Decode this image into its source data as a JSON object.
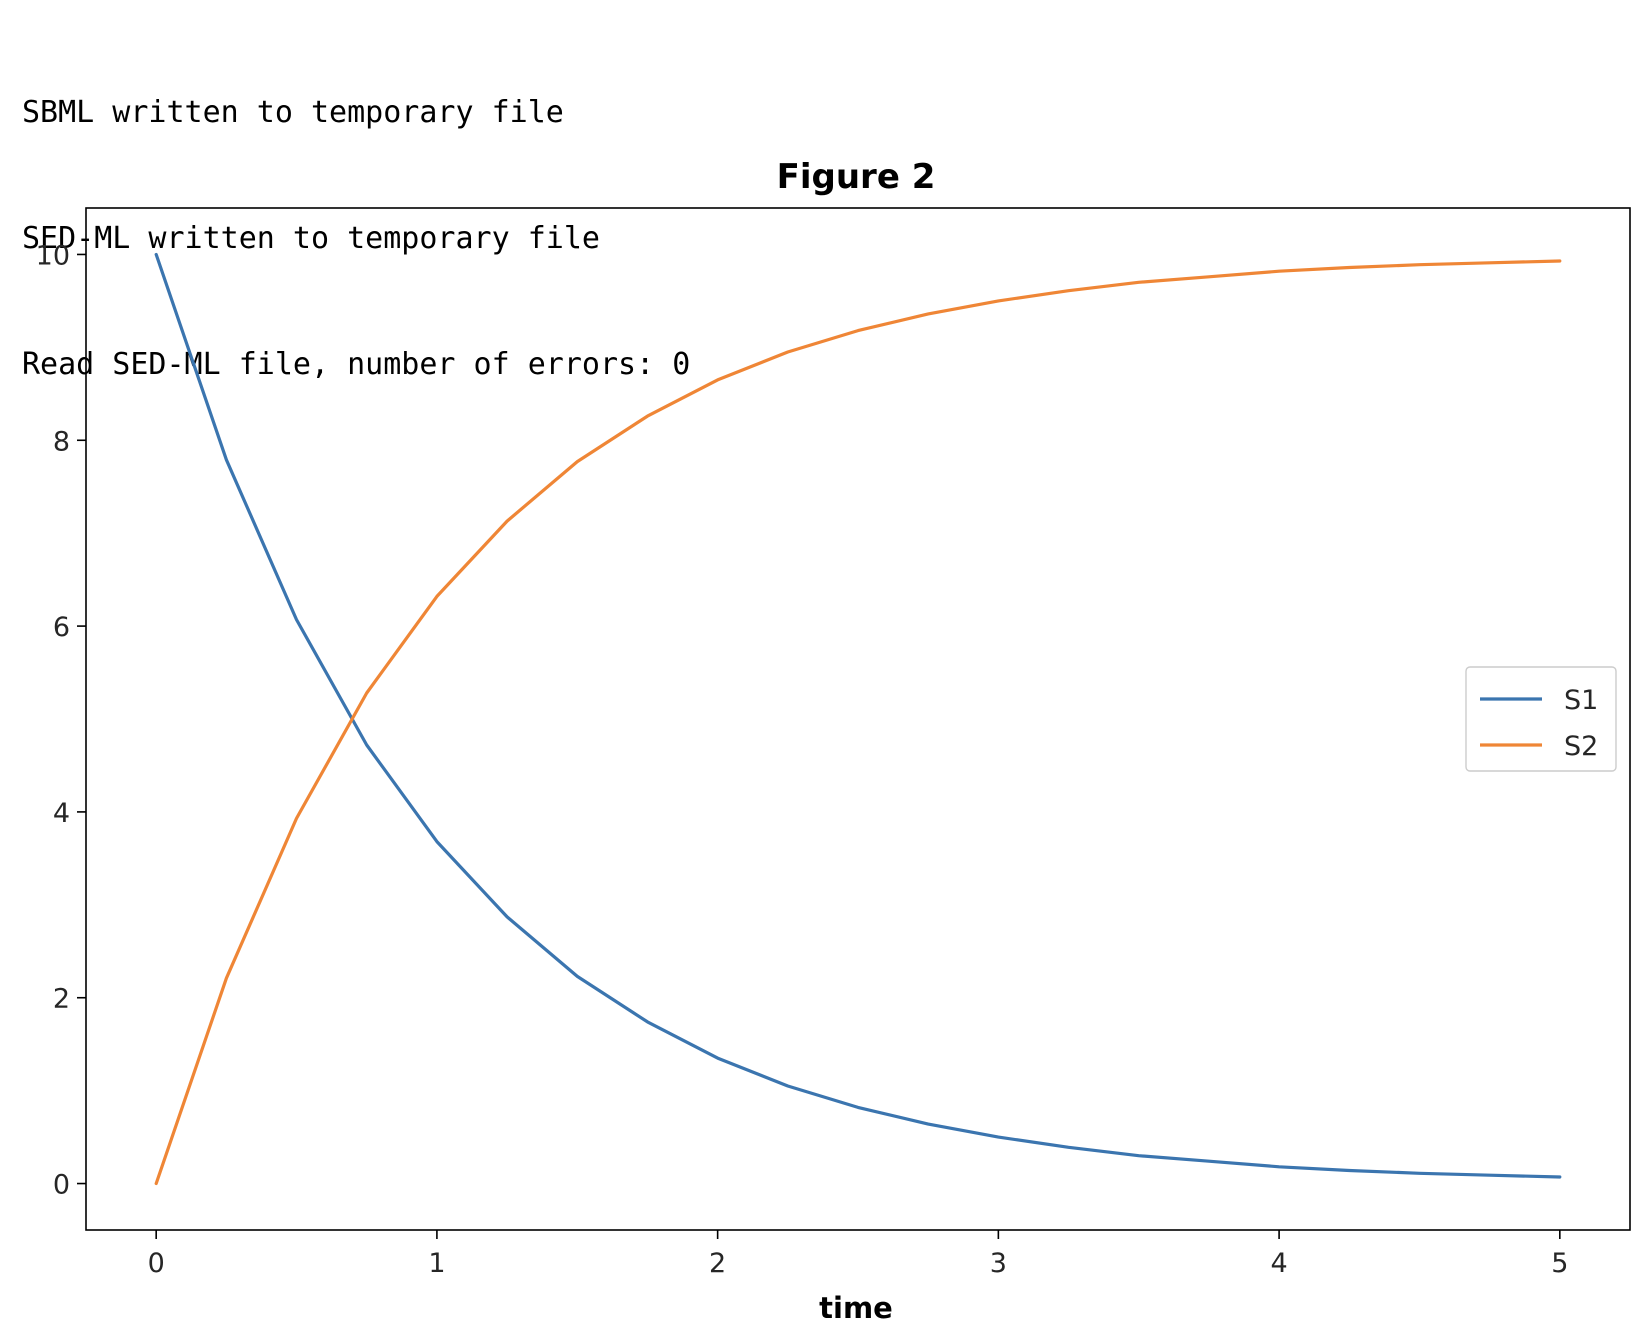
{
  "console": {
    "lines": [
      "SBML written to temporary file",
      "SED-ML written to temporary file",
      "Read SED-ML file, number of errors: 0"
    ]
  },
  "chart_data": {
    "type": "line",
    "title": "Figure 2",
    "xlabel": "time",
    "ylabel": "",
    "xlim": [
      -0.25,
      5.25
    ],
    "ylim": [
      -0.5,
      10.5
    ],
    "xticks": [
      0,
      1,
      2,
      3,
      4,
      5
    ],
    "yticks": [
      0,
      2,
      4,
      6,
      8,
      10
    ],
    "grid": false,
    "legend_position": "center-right",
    "x": [
      0,
      0.25,
      0.5,
      0.75,
      1.0,
      1.25,
      1.5,
      1.75,
      2.0,
      2.25,
      2.5,
      2.75,
      3.0,
      3.25,
      3.5,
      3.75,
      4.0,
      4.25,
      4.5,
      4.75,
      5.0
    ],
    "series": [
      {
        "name": "S1",
        "color": "#3b75af",
        "values": [
          10.0,
          7.79,
          6.07,
          4.72,
          3.68,
          2.87,
          2.23,
          1.74,
          1.35,
          1.05,
          0.82,
          0.64,
          0.5,
          0.39,
          0.3,
          0.24,
          0.18,
          0.14,
          0.11,
          0.09,
          0.07
        ]
      },
      {
        "name": "S2",
        "color": "#ef8636",
        "values": [
          0.0,
          2.21,
          3.93,
          5.28,
          6.32,
          7.13,
          7.77,
          8.26,
          8.65,
          8.95,
          9.18,
          9.36,
          9.5,
          9.61,
          9.7,
          9.76,
          9.82,
          9.86,
          9.89,
          9.91,
          9.93
        ]
      }
    ]
  }
}
